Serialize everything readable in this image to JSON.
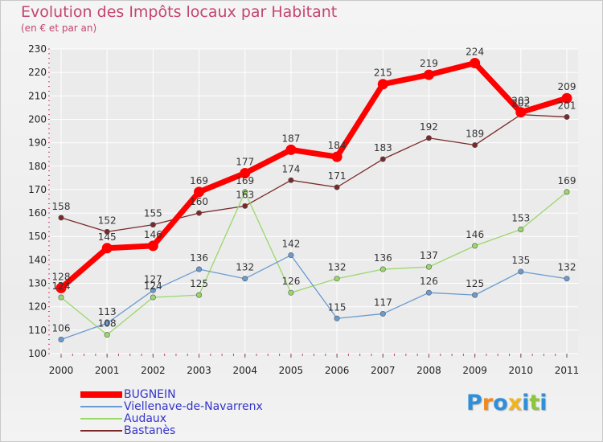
{
  "chart_data": {
    "type": "line",
    "title": "Evolution des Impôts locaux par Habitant",
    "subtitle": "(en € et par an)",
    "x": [
      "2000",
      "2001",
      "2002",
      "2003",
      "2004",
      "2005",
      "2006",
      "2007",
      "2008",
      "2009",
      "2010",
      "2011"
    ],
    "ylim": [
      100,
      230
    ],
    "yticks": [
      100,
      110,
      120,
      130,
      140,
      150,
      160,
      170,
      180,
      190,
      200,
      210,
      220,
      230
    ],
    "grid": true,
    "legend_position": "bottom-left",
    "series": [
      {
        "name": "BUGNEIN",
        "color": "#ff0000",
        "values": [
          128,
          145,
          146,
          169,
          177,
          187,
          184,
          215,
          219,
          224,
          203,
          209
        ]
      },
      {
        "name": "Viellenave-de-Navarrenx",
        "color": "#6a9bd1",
        "values": [
          106,
          113,
          127,
          136,
          132,
          142,
          115,
          117,
          126,
          125,
          135,
          132
        ]
      },
      {
        "name": "Audaux",
        "color": "#9ad86a",
        "values": [
          124,
          108,
          124,
          125,
          169,
          126,
          132,
          136,
          137,
          146,
          153,
          169
        ]
      },
      {
        "name": "Bastanès",
        "color": "#7a2a2a",
        "values": [
          158,
          152,
          155,
          160,
          163,
          174,
          171,
          183,
          192,
          189,
          202,
          201
        ]
      }
    ]
  },
  "logo": {
    "letters": [
      "P",
      "r",
      "o",
      "x",
      "i",
      "t",
      "i"
    ],
    "colors": [
      "#2f8fd8",
      "#f08a1e",
      "#2f8fd8",
      "#f0b51e",
      "#2f8fd8",
      "#8cc63f",
      "#2f8fd8"
    ]
  }
}
